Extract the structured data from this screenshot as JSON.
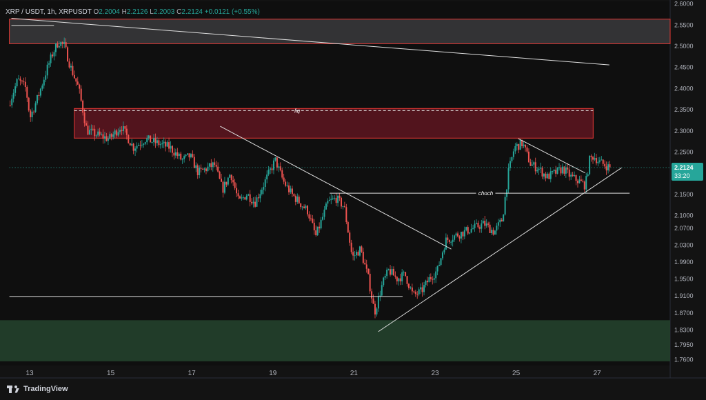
{
  "header": {
    "symbol": "XRP / USDT, 1h, XRPUSDT",
    "open_label": "O",
    "open": "2.2004",
    "high_label": "H",
    "high": "2.2126",
    "low_label": "L",
    "low": "2.2003",
    "close_label": "C",
    "close": "2.2124",
    "change": "+0.0121 (+0.55%)"
  },
  "price_tag": {
    "price": "2.2124",
    "countdown": "33:20"
  },
  "brand": "TradingView",
  "colors": {
    "background": "#0f0f0f",
    "bull": "#26a69a",
    "bear": "#ef5350",
    "supply_zone_fill": "#8b1a2a",
    "demand_zone_fill": "#24412c",
    "top_zone_fill": "#3a3a3c",
    "zone_border": "#e53935",
    "price_tag": "#26a69a"
  },
  "annotations": {
    "liq_label": "liq",
    "choch_label": "choch"
  },
  "chart_data": {
    "type": "candlestick",
    "ylim": [
      1.745,
      2.605
    ],
    "y_ticks": [
      "2.6000",
      "2.5500",
      "2.5000",
      "2.4500",
      "2.4000",
      "2.3500",
      "2.3000",
      "2.2500",
      "2.2000",
      "2.1500",
      "2.1000",
      "2.0700",
      "2.0300",
      "1.9900",
      "1.9500",
      "1.9100",
      "1.8700",
      "1.8300",
      "1.7950",
      "1.7600"
    ],
    "y_tick_values": [
      2.6,
      2.55,
      2.5,
      2.45,
      2.4,
      2.35,
      2.3,
      2.25,
      2.2,
      2.15,
      2.1,
      2.07,
      2.03,
      1.99,
      1.95,
      1.91,
      1.87,
      1.83,
      1.795,
      1.76
    ],
    "x_ticks": [
      "13",
      "15",
      "17",
      "19",
      "21",
      "23",
      "25",
      "27"
    ],
    "x_tick_days": [
      13,
      15,
      17,
      19,
      21,
      23,
      25,
      27
    ],
    "xlim_days": [
      12.5,
      29.5
    ],
    "anchors": [
      [
        12.52,
        2.36
      ],
      [
        12.75,
        2.42
      ],
      [
        12.95,
        2.4
      ],
      [
        13.05,
        2.33
      ],
      [
        13.25,
        2.38
      ],
      [
        13.45,
        2.44
      ],
      [
        13.6,
        2.48
      ],
      [
        13.75,
        2.51
      ],
      [
        13.9,
        2.5
      ],
      [
        14.05,
        2.45
      ],
      [
        14.25,
        2.4
      ],
      [
        14.45,
        2.3
      ],
      [
        14.7,
        2.29
      ],
      [
        15.0,
        2.28
      ],
      [
        15.3,
        2.31
      ],
      [
        15.6,
        2.26
      ],
      [
        15.9,
        2.28
      ],
      [
        16.2,
        2.27
      ],
      [
        16.5,
        2.26
      ],
      [
        16.8,
        2.23
      ],
      [
        17.0,
        2.24
      ],
      [
        17.2,
        2.2
      ],
      [
        17.4,
        2.21
      ],
      [
        17.6,
        2.22
      ],
      [
        17.8,
        2.16
      ],
      [
        18.0,
        2.2
      ],
      [
        18.2,
        2.13
      ],
      [
        18.4,
        2.15
      ],
      [
        18.6,
        2.13
      ],
      [
        18.8,
        2.17
      ],
      [
        18.95,
        2.2
      ],
      [
        19.1,
        2.23
      ],
      [
        19.3,
        2.18
      ],
      [
        19.5,
        2.15
      ],
      [
        19.7,
        2.13
      ],
      [
        19.9,
        2.11
      ],
      [
        20.1,
        2.05
      ],
      [
        20.25,
        2.09
      ],
      [
        20.4,
        2.13
      ],
      [
        20.6,
        2.14
      ],
      [
        20.8,
        2.12
      ],
      [
        21.0,
        2.0
      ],
      [
        21.2,
        2.02
      ],
      [
        21.4,
        1.95
      ],
      [
        21.55,
        1.87
      ],
      [
        21.75,
        1.94
      ],
      [
        21.9,
        1.97
      ],
      [
        22.1,
        1.95
      ],
      [
        22.3,
        1.96
      ],
      [
        22.5,
        1.91
      ],
      [
        22.7,
        1.92
      ],
      [
        22.9,
        1.95
      ],
      [
        23.1,
        1.97
      ],
      [
        23.3,
        2.04
      ],
      [
        23.5,
        2.05
      ],
      [
        23.75,
        2.06
      ],
      [
        24.0,
        2.07
      ],
      [
        24.25,
        2.08
      ],
      [
        24.5,
        2.06
      ],
      [
        24.7,
        2.09
      ],
      [
        24.85,
        2.2
      ],
      [
        25.0,
        2.26
      ],
      [
        25.2,
        2.27
      ],
      [
        25.4,
        2.22
      ],
      [
        25.6,
        2.21
      ],
      [
        25.8,
        2.19
      ],
      [
        26.0,
        2.2
      ],
      [
        26.2,
        2.21
      ],
      [
        26.4,
        2.19
      ],
      [
        26.6,
        2.18
      ],
      [
        26.75,
        2.17
      ],
      [
        26.85,
        2.23
      ],
      [
        26.95,
        2.24
      ],
      [
        27.1,
        2.225
      ],
      [
        27.35,
        2.2124
      ]
    ],
    "zones": {
      "top_gray": {
        "y_from": 2.505,
        "y_to": 2.563,
        "x_from_day": 12.5,
        "x_to_day": 29.5
      },
      "supply": {
        "y_from": 2.282,
        "y_to": 2.352,
        "x_from_day": 14.1,
        "x_to_day": 29.5
      },
      "demand": {
        "y_from": 1.755,
        "y_to": 1.852,
        "x_from_day": 12.5,
        "x_to_day": 29.5
      }
    },
    "lines": [
      {
        "id": "top-descending",
        "from": [
          12.55,
          2.565
        ],
        "to": [
          27.3,
          2.455
        ]
      },
      {
        "id": "short-top-line",
        "from": [
          12.55,
          2.548
        ],
        "to": [
          13.6,
          2.548
        ]
      },
      {
        "id": "liq-dashed",
        "from": [
          14.1,
          2.347
        ],
        "to": [
          29.5,
          2.347
        ],
        "dashed": true
      },
      {
        "id": "descending-trendline",
        "from": [
          17.7,
          2.31
        ],
        "to": [
          23.4,
          2.02
        ]
      },
      {
        "id": "choch-line",
        "from": [
          20.4,
          2.152
        ],
        "to": [
          27.8,
          2.152
        ]
      },
      {
        "id": "left-support",
        "from": [
          12.5,
          1.908
        ],
        "to": [
          22.2,
          1.908
        ]
      },
      {
        "id": "ascending-trendline",
        "from": [
          21.6,
          1.825
        ],
        "to": [
          27.6,
          2.212
        ]
      },
      {
        "id": "flag-upper",
        "from": [
          25.05,
          2.281
        ],
        "to": [
          26.7,
          2.2
        ]
      },
      {
        "id": "current-price",
        "from": [
          12.5,
          2.2124
        ],
        "to": [
          29.5,
          2.2124
        ],
        "dotted": true
      }
    ]
  }
}
